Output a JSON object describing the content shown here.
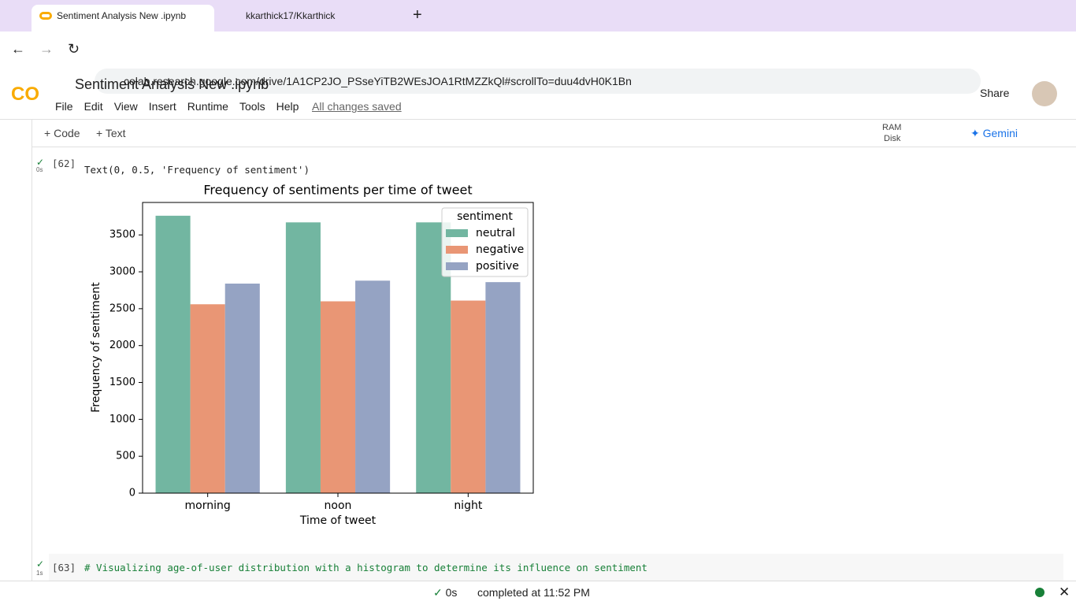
{
  "browser": {
    "tabs": [
      "Sentiment Analysis New .ipynb",
      "kkarthick17/Kkarthick"
    ],
    "url": "colab.research.google.com/drive/1A1CP2JO_PSseYiTB2WEsJOA1RtMZZkQl#scrollTo=duu4dvH0K1Bn"
  },
  "header": {
    "title": "Sentiment Analysis New .ipynb",
    "menu": [
      "File",
      "Edit",
      "View",
      "Insert",
      "Runtime",
      "Tools",
      "Help"
    ],
    "save_status": "All changes saved",
    "share": "Share"
  },
  "toolbar": {
    "add": [
      "Code",
      "Text"
    ],
    "ram": "RAM",
    "disk": "Disk",
    "gemini": "Gemini"
  },
  "cells": [
    {
      "count": "[62]",
      "time": "0s",
      "output": "Text(0, 0.5, 'Frequency of sentiment')"
    },
    {
      "count": "[63]",
      "time": "1s",
      "code": "# Visualizing age-of-user distribution with a histogram to determine its influence on sentiment"
    }
  ],
  "status": {
    "time": "0s",
    "message": "completed at 11:52 PM"
  },
  "chart_data": {
    "type": "bar",
    "title": "Frequency of sentiments per time of tweet",
    "x_label": "Time of tweet",
    "y_label": "Frequency of sentiment",
    "legend_title": "sentiment",
    "legend_position": "upper right",
    "categories": [
      "morning",
      "noon",
      "night"
    ],
    "series": [
      {
        "name": "neutral",
        "color": "#72b6a1",
        "values": [
          3760,
          3670,
          3670
        ]
      },
      {
        "name": "negative",
        "color": "#e99675",
        "values": [
          2560,
          2600,
          2610
        ]
      },
      {
        "name": "positive",
        "color": "#95a3c3",
        "values": [
          2840,
          2880,
          2860
        ]
      }
    ],
    "ylim": [
      0,
      3940
    ],
    "yticks": [
      0,
      500,
      1000,
      1500,
      2000,
      2500,
      3000,
      3500
    ]
  }
}
